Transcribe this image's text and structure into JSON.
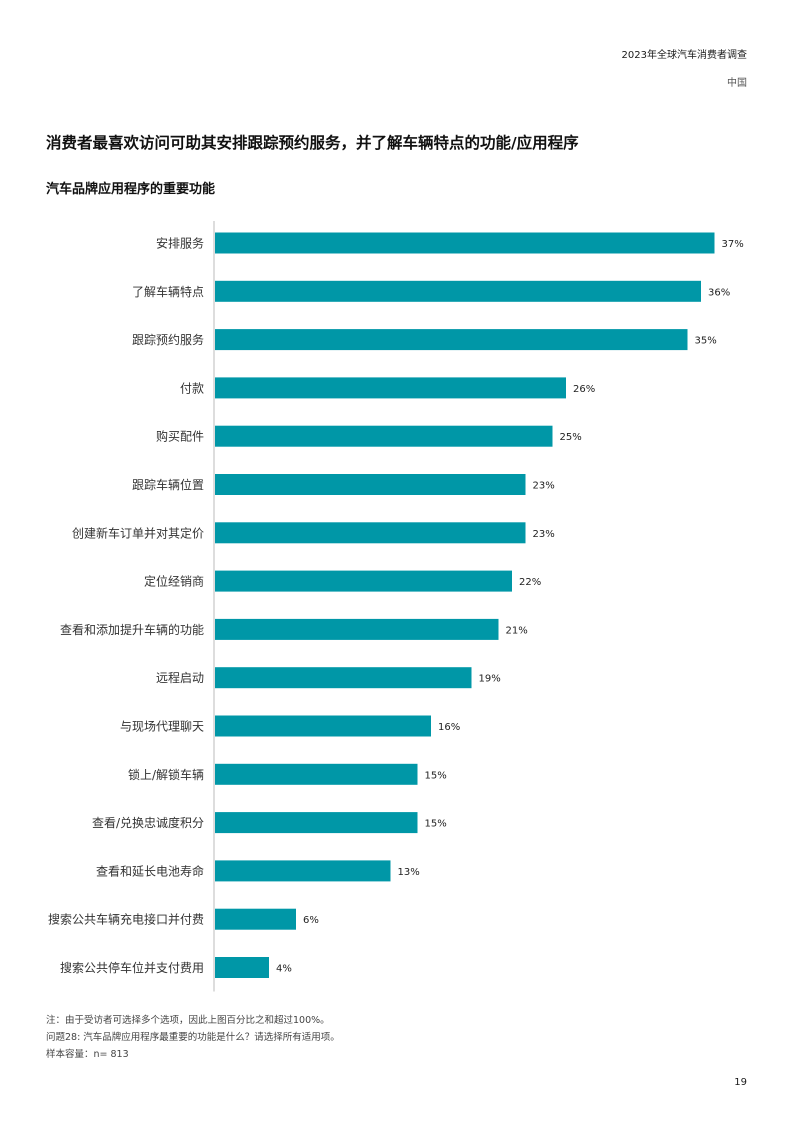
{
  "header": {
    "report_title": "2023年全球汽车消费者调查",
    "region": "中国"
  },
  "main_title": "消费者最喜欢访问可助其安排跟踪预约服务，并了解车辆特点的功能/应用程序",
  "chart_data": {
    "type": "bar",
    "orientation": "horizontal",
    "title": "汽车品牌应用程序的重要功能",
    "categories": [
      "安排服务",
      "了解车辆特点",
      "跟踪预约服务",
      "付款",
      "购买配件",
      "跟踪车辆位置",
      "创建新车订单并对其定价",
      "定位经销商",
      "查看和添加提升车辆的功能",
      "远程启动",
      "与现场代理聊天",
      "锁上/解锁车辆",
      "查看/兑换忠诚度积分",
      "查看和延长电池寿命",
      "搜索公共车辆充电接口并付费",
      "搜索公共停车位并支付费用"
    ],
    "values": [
      37,
      36,
      35,
      26,
      25,
      23,
      23,
      22,
      21,
      19,
      16,
      15,
      15,
      13,
      6,
      4
    ],
    "value_labels": [
      "37%",
      "36%",
      "35%",
      "26%",
      "25%",
      "23%",
      "23%",
      "22%",
      "21%",
      "19%",
      "16%",
      "15%",
      "15%",
      "13%",
      "6%",
      "4%"
    ],
    "unit": "%",
    "bar_color": "#0097a7",
    "axis_line_color": "#bbbbbb",
    "grid": false,
    "legend": "none"
  },
  "notes": {
    "note": "注：由于受访者可选择多个选项，因此上图百分比之和超过100%。",
    "question": "问题28: 汽车品牌应用程序最重要的功能是什么？请选择所有适用项。",
    "sample": "样本容量：n= 813"
  },
  "page_number": "19"
}
